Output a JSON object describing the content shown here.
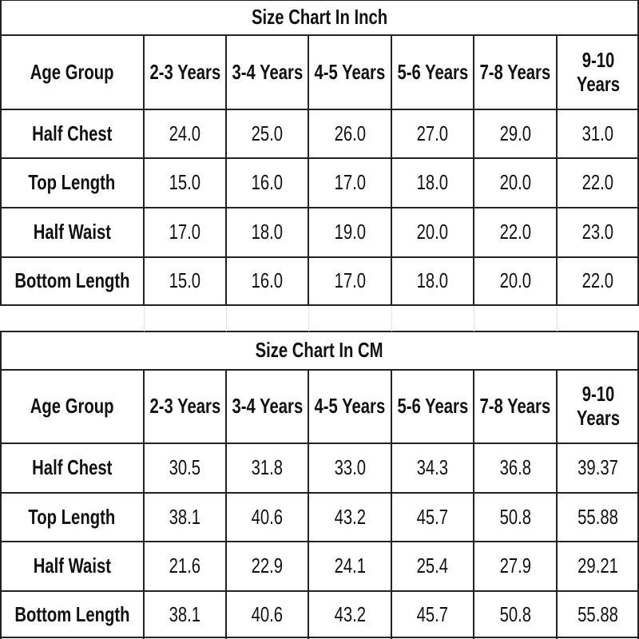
{
  "tables": [
    {
      "title": "Size Chart In Inch",
      "header": [
        "Age Group",
        "2-3 Years",
        "3-4 Years",
        "4-5 Years",
        "5-6 Years",
        "7-8 Years",
        "9-10 Years"
      ],
      "rows": [
        [
          "Half Chest",
          "24.0",
          "25.0",
          "26.0",
          "27.0",
          "29.0",
          "31.0"
        ],
        [
          "Top Length",
          "15.0",
          "16.0",
          "17.0",
          "18.0",
          "20.0",
          "22.0"
        ],
        [
          "Half Waist",
          "17.0",
          "18.0",
          "19.0",
          "20.0",
          "22.0",
          "23.0"
        ],
        [
          "Bottom Length",
          "15.0",
          "16.0",
          "17.0",
          "18.0",
          "20.0",
          "22.0"
        ]
      ]
    },
    {
      "title": "Size Chart In CM",
      "header": [
        "Age Group",
        "2-3 Years",
        "3-4 Years",
        "4-5 Years",
        "5-6 Years",
        "7-8 Years",
        "9-10 Years"
      ],
      "rows": [
        [
          "Half Chest",
          "30.5",
          "31.8",
          "33.0",
          "34.3",
          "36.8",
          "39.37"
        ],
        [
          "Top Length",
          "38.1",
          "40.6",
          "43.2",
          "45.7",
          "50.8",
          "55.88"
        ],
        [
          "Half Waist",
          "21.6",
          "22.9",
          "24.1",
          "25.4",
          "27.9",
          "29.21"
        ],
        [
          "Bottom Length",
          "38.1",
          "40.6",
          "43.2",
          "45.7",
          "50.8",
          "55.88"
        ]
      ]
    }
  ]
}
